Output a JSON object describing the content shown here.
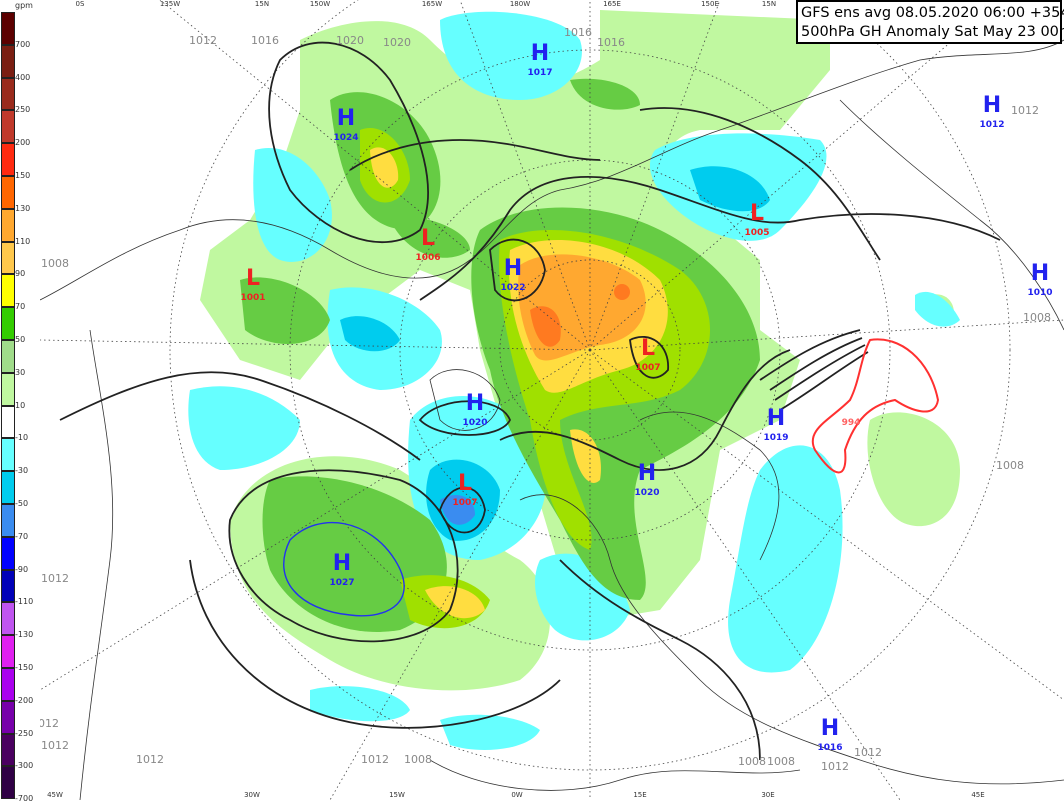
{
  "title": {
    "line1": "GFS ens avg 08.05.2020 06:00 +354 h",
    "line2": "500hPa GH Anomaly Sat May 23 00h"
  },
  "legend": {
    "unit": "gpm",
    "colors": [
      "#5c0000",
      "#7a1e12",
      "#992a1c",
      "#c0392b",
      "#ff2a10",
      "#ff6600",
      "#ffa830",
      "#ffc84c",
      "#ffff00",
      "#33cc00",
      "#a0dc8a",
      "#c0f8a0",
      "#ffffff",
      "#66ffff",
      "#00ccee",
      "#3a8cf0",
      "#0000ff",
      "#0000b8",
      "#c055f0",
      "#e020f0",
      "#aa00ee",
      "#7700aa",
      "#4a0060",
      "#300045"
    ],
    "labels": [
      "700",
      "400",
      "250",
      "200",
      "150",
      "130",
      "110",
      "90",
      "70",
      "50",
      "30",
      "10",
      "-10",
      "-30",
      "-50",
      "-70",
      "-90",
      "-110",
      "-130",
      "-150",
      "-200",
      "-250",
      "-300",
      "-700"
    ]
  },
  "pressure_centers": [
    {
      "type": "H",
      "value": "1017"
    },
    {
      "type": "H",
      "value": "1024"
    },
    {
      "type": "L",
      "value": "1006"
    },
    {
      "type": "L",
      "value": "1001"
    },
    {
      "type": "H",
      "value": "1022"
    },
    {
      "type": "L",
      "value": "1007"
    },
    {
      "type": "L",
      "value": "1005"
    },
    {
      "type": "H",
      "value": "1012"
    },
    {
      "type": "H",
      "value": "1010"
    },
    {
      "type": "H",
      "value": "1019"
    },
    {
      "type": "L",
      "value": "994"
    },
    {
      "type": "H",
      "value": "1020"
    },
    {
      "type": "H",
      "value": "1020"
    },
    {
      "type": "L",
      "value": "1007"
    },
    {
      "type": "H",
      "value": "1027"
    },
    {
      "type": "H",
      "value": "1016"
    }
  ],
  "isobar_labels": [
    "1012",
    "1016",
    "1020",
    "1020",
    "1016",
    "1016",
    "1012",
    "1008",
    "1008",
    "1008",
    "1012",
    "1012",
    "1012",
    "1012",
    "1012",
    "1008",
    "1008",
    "1008",
    "1012",
    "1012"
  ],
  "graticule_labels": [
    "0S",
    "135W",
    "15N",
    "150W",
    "165W",
    "180W",
    "165E",
    "150E",
    "15N",
    "45W",
    "30W",
    "15W",
    "0W",
    "15E",
    "30E",
    "45E"
  ],
  "colors": {
    "high": "#2222ee",
    "low": "#ee2222",
    "contour": "#222222",
    "low_contour_highlight": "#ff3030"
  }
}
